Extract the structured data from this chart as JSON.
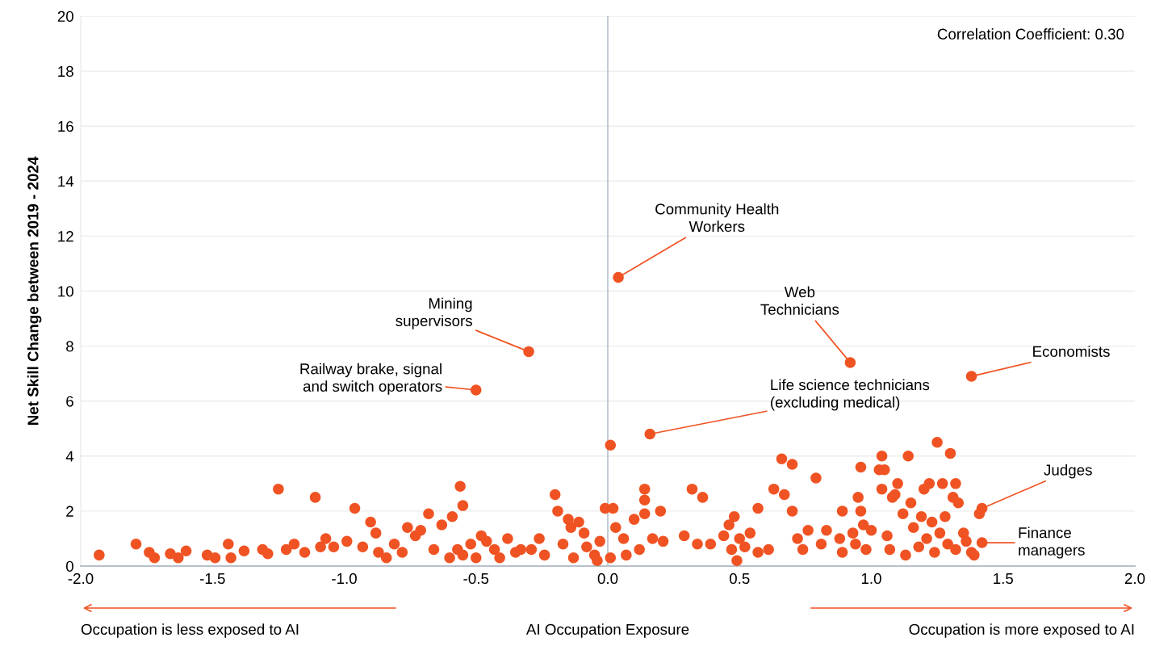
{
  "chart_data": {
    "type": "scatter",
    "xlabel": "AI Occupation Exposure",
    "ylabel": "Net Skill Change between 2019 - 2024",
    "xlim": [
      -2.0,
      2.0
    ],
    "ylim": [
      0,
      20
    ],
    "xticks": [
      {
        "value": -2.0,
        "label": "-2.0"
      },
      {
        "value": -1.5,
        "label": "-1.5"
      },
      {
        "value": -1.0,
        "label": "-1.0"
      },
      {
        "value": -0.5,
        "label": "-0.5"
      },
      {
        "value": 0.0,
        "label": "0.0"
      },
      {
        "value": 0.5,
        "label": "0.5"
      },
      {
        "value": 1.0,
        "label": "1.0"
      },
      {
        "value": 1.5,
        "label": "1.5"
      },
      {
        "value": 2.0,
        "label": "2.0"
      }
    ],
    "yticks": [
      0,
      2,
      4,
      6,
      8,
      10,
      12,
      14,
      16,
      18,
      20
    ],
    "grid": "y",
    "marker": "circle",
    "ref_lines": [
      {
        "axis": "x",
        "value": 0,
        "color": "#a9b4c2"
      }
    ],
    "series": [
      {
        "color": "#f05323",
        "x": [
          0.04,
          -0.3,
          -0.5,
          0.92,
          1.38,
          0.16,
          0.01,
          1.42,
          1.41,
          1.42,
          -1.93,
          -1.79,
          -1.74,
          -1.72,
          -1.66,
          -1.63,
          -1.6,
          -1.52,
          -1.49,
          -1.44,
          -1.43,
          -1.38,
          -1.31,
          -1.29,
          -1.25,
          -1.22,
          -1.19,
          -1.15,
          -1.11,
          -1.09,
          -1.07,
          -1.04,
          -0.99,
          -0.96,
          -0.93,
          -0.9,
          -0.88,
          -0.87,
          -0.84,
          -0.81,
          -0.78,
          -0.76,
          -0.73,
          -0.71,
          -0.68,
          -0.66,
          -0.63,
          -0.6,
          -0.59,
          -0.56,
          -0.55,
          -0.57,
          -0.55,
          -0.52,
          -0.5,
          -0.48,
          -0.46,
          -0.43,
          -0.41,
          -0.38,
          -0.35,
          -0.33,
          -0.29,
          -0.26,
          -0.24,
          -0.2,
          -0.19,
          -0.17,
          -0.15,
          -0.14,
          -0.13,
          -0.11,
          -0.09,
          -0.08,
          -0.05,
          -0.04,
          -0.03,
          -0.01,
          0.01,
          0.02,
          0.03,
          0.06,
          0.07,
          0.1,
          0.12,
          0.14,
          0.14,
          0.14,
          0.17,
          0.2,
          0.21,
          0.29,
          0.32,
          0.36,
          0.34,
          0.39,
          0.44,
          0.46,
          0.47,
          0.48,
          0.5,
          0.49,
          0.52,
          0.54,
          0.57,
          0.57,
          0.61,
          0.63,
          0.66,
          0.67,
          0.7,
          0.7,
          0.72,
          0.74,
          0.76,
          0.79,
          0.81,
          0.83,
          0.88,
          0.89,
          0.89,
          0.93,
          0.94,
          0.95,
          0.96,
          0.96,
          0.97,
          0.98,
          1.0,
          1.03,
          1.04,
          1.05,
          1.04,
          1.06,
          1.07,
          1.08,
          1.09,
          1.1,
          1.12,
          1.13,
          1.14,
          1.15,
          1.16,
          1.18,
          1.19,
          1.2,
          1.21,
          1.22,
          1.23,
          1.24,
          1.25,
          1.26,
          1.27,
          1.28,
          1.29,
          1.3,
          1.31,
          1.32,
          1.32,
          1.33,
          1.35,
          1.36,
          1.38,
          1.39
        ],
        "values": [
          10.5,
          7.8,
          6.4,
          7.4,
          6.9,
          4.8,
          4.4,
          2.1,
          1.9,
          0.85,
          0.4,
          0.8,
          0.5,
          0.3,
          0.45,
          0.3,
          0.55,
          0.4,
          0.3,
          0.8,
          0.3,
          0.55,
          0.6,
          0.45,
          2.8,
          0.6,
          0.8,
          0.5,
          2.5,
          0.7,
          1.0,
          0.7,
          0.9,
          2.1,
          0.7,
          1.6,
          1.2,
          0.5,
          0.3,
          0.8,
          0.5,
          1.4,
          1.1,
          1.3,
          1.9,
          0.6,
          1.5,
          0.3,
          1.8,
          2.9,
          2.2,
          0.6,
          0.4,
          0.8,
          0.3,
          1.1,
          0.9,
          0.6,
          0.3,
          1.0,
          0.5,
          0.6,
          0.6,
          1.0,
          0.4,
          2.6,
          2.0,
          0.8,
          1.7,
          1.4,
          0.3,
          1.6,
          1.2,
          0.7,
          0.4,
          0.2,
          0.9,
          2.1,
          0.3,
          2.1,
          1.4,
          1.0,
          0.4,
          1.7,
          0.6,
          2.8,
          2.4,
          1.9,
          1.0,
          2.0,
          0.9,
          1.1,
          2.8,
          2.5,
          0.8,
          0.8,
          1.1,
          1.5,
          0.6,
          1.8,
          1.0,
          0.2,
          0.7,
          1.2,
          2.1,
          0.5,
          0.6,
          2.8,
          3.9,
          2.6,
          3.7,
          2.0,
          1.0,
          0.6,
          1.3,
          3.2,
          0.8,
          1.3,
          1.0,
          2.0,
          0.5,
          1.2,
          0.8,
          2.5,
          3.6,
          2.0,
          1.5,
          0.6,
          1.3,
          3.5,
          4.0,
          3.5,
          2.8,
          1.1,
          0.6,
          2.5,
          2.6,
          3.0,
          1.9,
          0.4,
          4.0,
          2.3,
          1.4,
          0.7,
          1.8,
          2.8,
          1.0,
          3.0,
          1.6,
          0.5,
          4.5,
          1.2,
          3.0,
          1.8,
          0.8,
          4.1,
          2.5,
          3.0,
          0.6,
          2.3,
          1.2,
          0.9,
          0.5,
          0.4
        ]
      }
    ],
    "annotations": [
      "Correlation Coefficient: 0.30",
      {
        "text": "Community Health\nWorkers",
        "x": 0.04,
        "y": 10.5
      },
      {
        "text": "Mining\nsupervisors",
        "x": -0.3,
        "y": 7.8
      },
      {
        "text": "Railway brake, signal\nand switch operators",
        "x": -0.5,
        "y": 6.4
      },
      {
        "text": "Web\nTechnicians",
        "x": 0.92,
        "y": 7.4
      },
      {
        "text": "Economists",
        "x": 1.38,
        "y": 6.9
      },
      {
        "text": "Life science technicians\n(excluding medical)",
        "x": 0.16,
        "y": 4.8
      },
      {
        "text": "Judges",
        "x": 1.42,
        "y": 2.1
      },
      {
        "text": "Finance\nmanagers",
        "x": 1.42,
        "y": 0.85
      },
      "Occupation is less exposed to AI",
      "Occupation is more exposed to AI"
    ]
  }
}
